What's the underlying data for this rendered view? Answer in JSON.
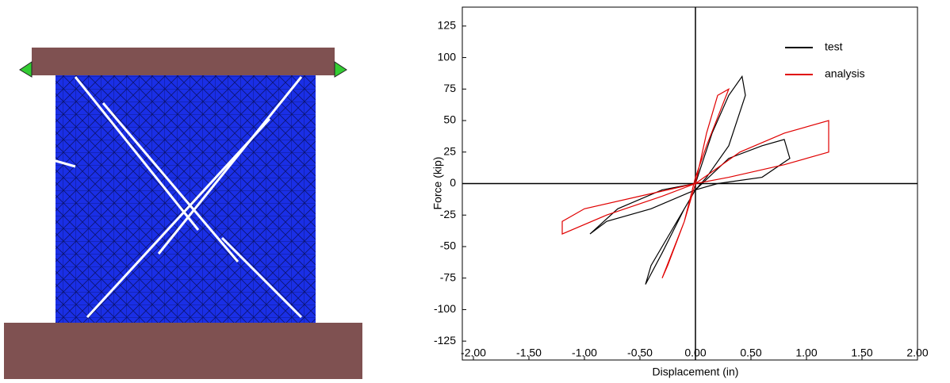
{
  "chart_data": {
    "type": "line",
    "x_label": "Displacement (in)",
    "y_label": "Force (kip)",
    "xlim": [
      -2.1,
      2
    ],
    "ylim": [
      -140,
      140
    ],
    "xticks": [
      {
        "value": -2,
        "label": "-2.00"
      },
      {
        "value": -1.5,
        "label": "-1.50"
      },
      {
        "value": -1,
        "label": "-1.00"
      },
      {
        "value": -0.5,
        "label": "-0.50"
      },
      {
        "value": 0,
        "label": "0.00"
      },
      {
        "value": 0.5,
        "label": "0.50"
      },
      {
        "value": 1,
        "label": "1.00"
      },
      {
        "value": 1.5,
        "label": "1.50"
      },
      {
        "value": 2,
        "label": "2.00"
      }
    ],
    "yticks": [
      125,
      100,
      75,
      50,
      25,
      0,
      -25,
      -50,
      -75,
      -100,
      -125
    ],
    "legend": "upper right",
    "series": [
      {
        "name": "test",
        "color": "#000000",
        "x": [
          0,
          0.15,
          0.3,
          0.42,
          0.45,
          0.3,
          0.1,
          0,
          -0.2,
          -0.4,
          -0.45,
          -0.3,
          -0.1,
          0,
          0.3,
          0.6,
          0.8,
          0.85,
          0.6,
          0.2,
          0,
          -0.4,
          -0.8,
          -0.95,
          -0.7,
          -0.3,
          0
        ],
        "values": [
          0,
          40,
          70,
          85,
          70,
          30,
          5,
          -5,
          -35,
          -65,
          -80,
          -55,
          -20,
          -5,
          20,
          30,
          35,
          20,
          5,
          0,
          -5,
          -20,
          -30,
          -40,
          -20,
          -5,
          0
        ]
      },
      {
        "name": "analysis",
        "color": "#e00000",
        "x": [
          0,
          0.1,
          0.2,
          0.3,
          0.1,
          0,
          -0.1,
          -0.25,
          -0.3,
          -0.1,
          0,
          0.4,
          0.8,
          1.2,
          1.2,
          0.8,
          0.3,
          0,
          -0.5,
          -1.0,
          -1.2,
          -1.2,
          -0.8,
          -0.3,
          0
        ],
        "values": [
          0,
          40,
          70,
          75,
          30,
          5,
          -30,
          -65,
          -75,
          -30,
          0,
          25,
          40,
          50,
          25,
          15,
          5,
          0,
          -10,
          -20,
          -30,
          -40,
          -25,
          -10,
          0
        ]
      }
    ]
  }
}
